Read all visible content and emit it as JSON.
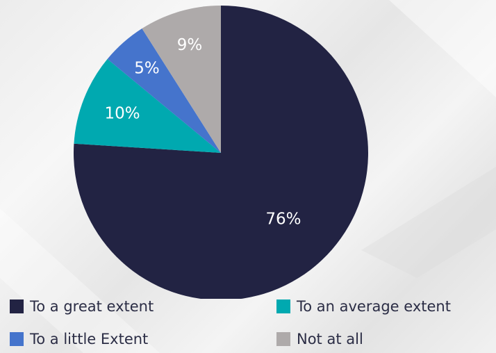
{
  "chart_data": {
    "type": "pie",
    "title": "",
    "legend_position": "bottom",
    "slices": [
      {
        "label": "To a great extent",
        "value": 76,
        "value_label": "76%",
        "color": "#222343"
      },
      {
        "label": "To an average extent",
        "value": 10,
        "value_label": "10%",
        "color": "#00a9b0"
      },
      {
        "label": "To a little Extent",
        "value": 5,
        "value_label": "5%",
        "color": "#4574cc"
      },
      {
        "label": "Not at all",
        "value": 9,
        "value_label": "9%",
        "color": "#aeaaaa"
      }
    ]
  }
}
